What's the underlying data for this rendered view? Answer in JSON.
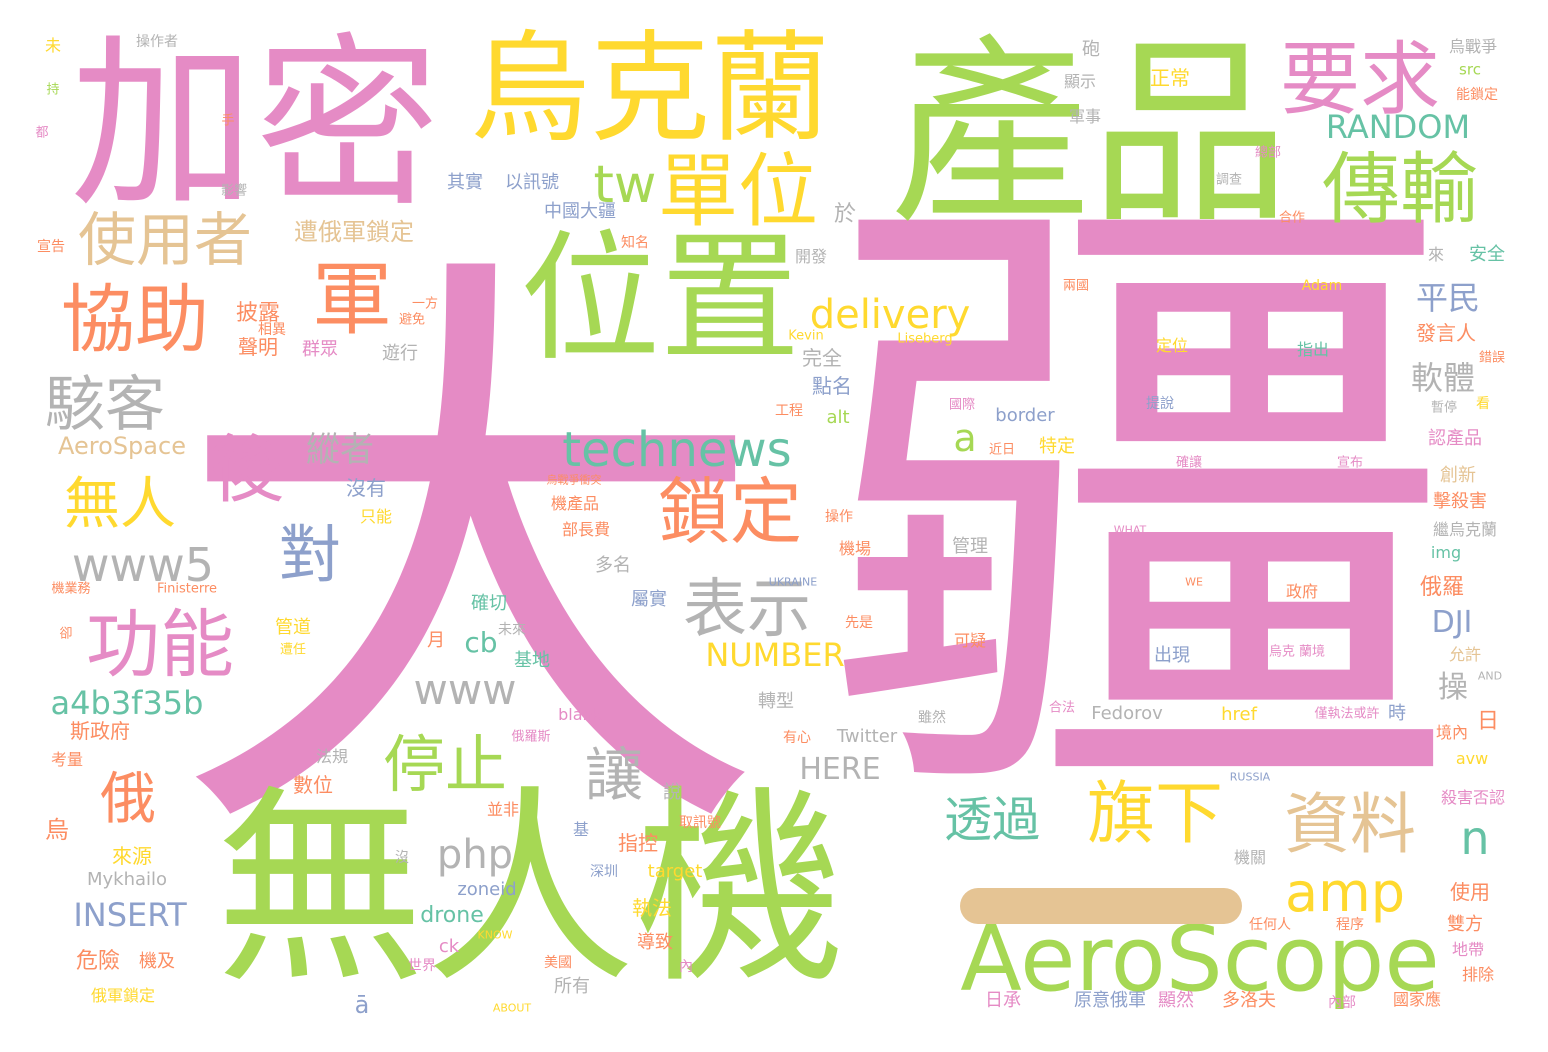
{
  "title": "",
  "palette": {
    "pink": "#e58bc5",
    "green": "#a6d854",
    "yellow": "#ffd92f",
    "orange": "#fc8d62",
    "teal": "#66c2a5",
    "blue": "#8da0cb",
    "gray": "#b3b3b3",
    "tan": "#e5c494",
    "background": "#ffffff"
  },
  "words": [
    "大",
    "疆",
    "無人機",
    "產品",
    "加密",
    "烏克蘭",
    "位置",
    "AeroScope",
    "一",
    "要求",
    "傳輸",
    "單位",
    "tw",
    "使用者",
    "協助",
    "軍",
    "駭客",
    "後",
    "無人",
    "功能",
    "對",
    "www5",
    "technews",
    "鎖定",
    "表示",
    "delivery",
    "資料",
    "旗下",
    "amp",
    "透過",
    "停止",
    "讓",
    "php",
    "www",
    "俄",
    "RANDOM",
    "a",
    "平民",
    "軟體",
    "DJI",
    "n",
    "NUMBER",
    "a4b3f35b",
    "INSERT",
    "HERE",
    "cb",
    "AeroSpace",
    "縱者",
    "遭俄軍鎖定",
    "披露",
    "聲明",
    "群眾",
    "遊行",
    "完全",
    "點名",
    "於",
    "開發",
    "來",
    "安全",
    "正常",
    "顯示",
    "軍事",
    "砲",
    "烏戰爭",
    "src",
    "能鎖定",
    "總部",
    "調查",
    "合作",
    "其實",
    "以訊號",
    "中國大疆",
    "知名",
    "操作者",
    "未",
    "Adam",
    "兩國",
    "Kevin",
    "Liseberg",
    "定位",
    "指出",
    "發言人",
    "錯誤",
    "提說",
    "看",
    "暫停",
    "認產品",
    "創新",
    "擊殺害",
    "繼烏克蘭",
    "img",
    "俄羅",
    "操",
    "日",
    "允許",
    "境內",
    "avw",
    "殺害否認",
    "地帶",
    "排除",
    "國家應",
    "雙方",
    "使用",
    "機關",
    "任何人",
    "程序",
    "內部",
    "多洛夫",
    "原意俄軍",
    "顯然",
    "日承",
    "所有",
    "ā",
    "ck",
    "美國",
    "世界",
    "內",
    "導致",
    "執法",
    "drone",
    "zoneid",
    "深圳",
    "target",
    "取訊號",
    "指控",
    "基",
    "並非",
    "數位",
    "說",
    "法規",
    "Twitter",
    "有心",
    "轉型",
    "blank",
    "俄羅斯",
    "合法",
    "Fedorov",
    "href",
    "時",
    "僅執法或許",
    "出現",
    "烏克 蘭境",
    "政府",
    "可疑",
    "雖然",
    "管理",
    "機場",
    "操作",
    "部長費",
    "機產品",
    "多名",
    "屬實",
    "確切",
    "未來",
    "基地",
    "月",
    "先是",
    "管道",
    "遭任",
    "斯政府",
    "考量",
    "危險",
    "機及",
    "俄軍鎖定",
    "來源",
    "Mykhailo",
    "烏",
    "沒有",
    "只能",
    "特定",
    "近日",
    "國際",
    "border",
    "alt",
    "工程",
    "確讓",
    "宣布",
    "避免",
    "一方",
    "相異",
    "宣告",
    "影響",
    "都",
    "持",
    "手",
    "卻",
    "機業務",
    "Finisterre",
    "UKRAINE",
    "WE",
    "WHAT",
    "RUSSIA",
    "ABOUT",
    "KNOW",
    "AND",
    "沒",
    "烏戰爭衝突"
  ]
}
